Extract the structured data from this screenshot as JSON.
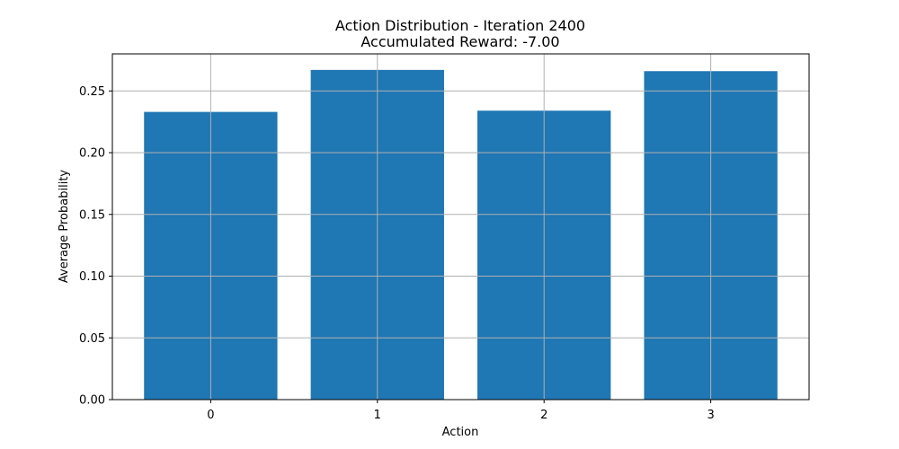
{
  "chart_data": {
    "type": "bar",
    "title": "Action Distribution - Iteration 2400",
    "subtitle": "Accumulated Reward: -7.00",
    "xlabel": "Action",
    "ylabel": "Average Probability",
    "categories": [
      "0",
      "1",
      "2",
      "3"
    ],
    "values": [
      0.233,
      0.267,
      0.234,
      0.266
    ],
    "ylim": [
      0,
      0.28
    ],
    "yticks": [
      0.0,
      0.05,
      0.1,
      0.15,
      0.2,
      0.25
    ],
    "ytick_labels": [
      "0.00",
      "0.05",
      "0.10",
      "0.15",
      "0.20",
      "0.25"
    ],
    "grid": true,
    "bar_color": "#1f77b4",
    "grid_color": "#b0b0b0"
  }
}
